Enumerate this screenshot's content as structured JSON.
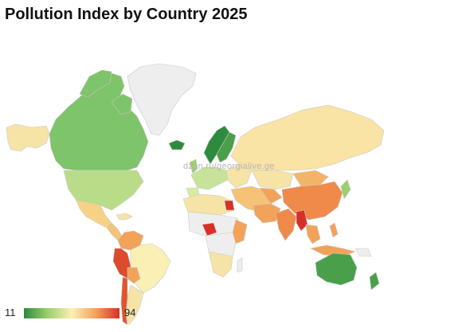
{
  "title": "Pollution Index by Country 2025",
  "watermark": "dzen.ru/georgialive.ge",
  "legend": {
    "min_label": "11",
    "max_label": "94",
    "min": 11,
    "max": 94,
    "colors": [
      "#2e8b3e",
      "#9ccf6e",
      "#fbf0b4",
      "#f3a25a",
      "#d73027"
    ]
  },
  "colors": {
    "no_data": "#eeeeee",
    "border": "#c9c9c9"
  }
}
